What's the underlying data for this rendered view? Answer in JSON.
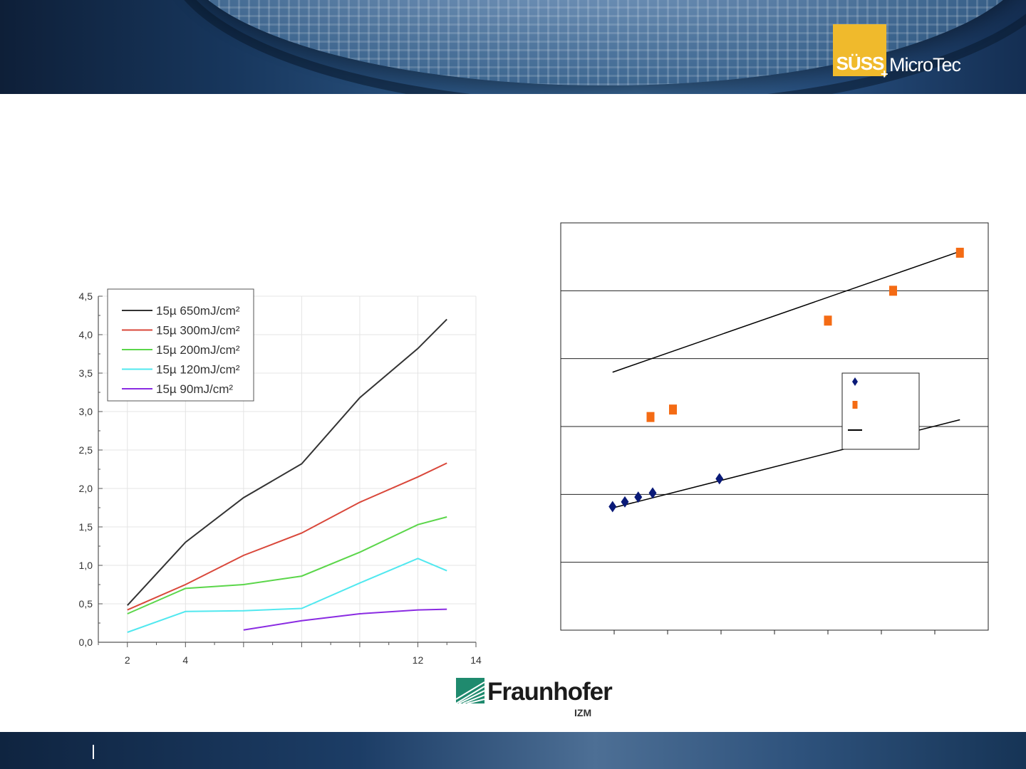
{
  "header": {
    "logo_suss": "SÜSS",
    "logo_micro": "MicroTec",
    "logo_plus": "+"
  },
  "logos": {
    "fraunhofer_name": "Fraunhofer",
    "fraunhofer_sub": "IZM"
  },
  "colors": {
    "suss_yellow": "#f0ba2c",
    "series_650": "#333333",
    "series_300": "#d9473a",
    "series_200": "#5bd64a",
    "series_120": "#51e8ef",
    "series_90": "#8a2be2",
    "diamond": "#0a1a78",
    "square": "#f46b14"
  },
  "chart_data": [
    {
      "type": "line",
      "x_ticks": [
        2,
        4,
        6,
        8,
        10,
        12,
        14
      ],
      "x_tick_labels": [
        "2",
        "4",
        "",
        "",
        "",
        "12",
        "14"
      ],
      "xlim": [
        1,
        14
      ],
      "ylim": [
        0,
        4.5
      ],
      "y_ticks": [
        "0,0",
        "0,5",
        "1,0",
        "1,5",
        "2,0",
        "2,5",
        "3,0",
        "3,5",
        "4,0",
        "4,5"
      ],
      "grid": true,
      "legend_position": "top-left",
      "series": [
        {
          "name": "15µ 650mJ/cm²",
          "color": "#333333",
          "points": [
            [
              2,
              0.48
            ],
            [
              4,
              1.3
            ],
            [
              6,
              1.88
            ],
            [
              8,
              2.32
            ],
            [
              10,
              3.18
            ],
            [
              12,
              3.82
            ],
            [
              13,
              4.2
            ]
          ]
        },
        {
          "name": "15µ 300mJ/cm²",
          "color": "#d9473a",
          "points": [
            [
              2,
              0.42
            ],
            [
              4,
              0.75
            ],
            [
              6,
              1.13
            ],
            [
              8,
              1.42
            ],
            [
              10,
              1.82
            ],
            [
              12,
              2.15
            ],
            [
              13,
              2.33
            ]
          ]
        },
        {
          "name": "15µ 200mJ/cm²",
          "color": "#5bd64a",
          "points": [
            [
              2,
              0.37
            ],
            [
              4,
              0.7
            ],
            [
              6,
              0.75
            ],
            [
              8,
              0.86
            ],
            [
              10,
              1.17
            ],
            [
              12,
              1.53
            ],
            [
              13,
              1.63
            ]
          ]
        },
        {
          "name": "15µ 120mJ/cm²",
          "color": "#51e8ef",
          "points": [
            [
              2,
              0.13
            ],
            [
              4,
              0.4
            ],
            [
              6,
              0.41
            ],
            [
              8,
              0.44
            ],
            [
              10,
              0.77
            ],
            [
              12,
              1.09
            ],
            [
              13,
              0.93
            ]
          ]
        },
        {
          "name": "15µ 90mJ/cm²",
          "color": "#8a2be2",
          "points": [
            [
              6,
              0.16
            ],
            [
              8,
              0.28
            ],
            [
              10,
              0.37
            ],
            [
              12,
              0.42
            ],
            [
              13,
              0.43
            ]
          ]
        }
      ]
    },
    {
      "type": "scatter",
      "xlim": [
        0,
        8
      ],
      "ylim": [
        0,
        6
      ],
      "y_gridlines": [
        1,
        2,
        3,
        4,
        5
      ],
      "x_ticks": [
        1,
        2,
        3,
        4,
        5,
        6,
        7
      ],
      "legend_position": "center-right",
      "series": [
        {
          "marker": "diamond",
          "color": "#0a1a78",
          "points": [
            [
              0.97,
              1.82
            ],
            [
              1.2,
              1.89
            ],
            [
              1.45,
              1.96
            ],
            [
              1.72,
              2.02
            ],
            [
              2.97,
              2.23
            ]
          ]
        },
        {
          "marker": "square",
          "color": "#f46b14",
          "points": [
            [
              1.68,
              3.14
            ],
            [
              2.1,
              3.25
            ],
            [
              5.0,
              4.56
            ],
            [
              6.22,
              5.0
            ],
            [
              7.47,
              5.56
            ]
          ]
        },
        {
          "type": "line",
          "color": "#000000",
          "points": [
            [
              0.97,
              3.8
            ],
            [
              7.47,
              5.58
            ]
          ]
        },
        {
          "type": "line",
          "color": "#000000",
          "points": [
            [
              0.97,
              1.8
            ],
            [
              7.47,
              3.1
            ]
          ]
        }
      ]
    }
  ]
}
